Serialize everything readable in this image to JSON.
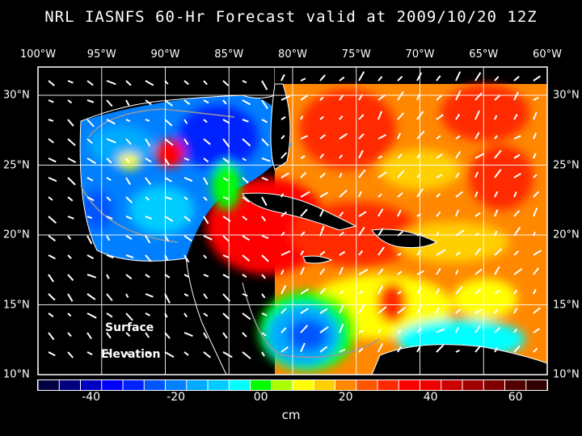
{
  "title": "NRL IASNFS  60-Hr Forecast valid at 2009/10/20 12Z",
  "map": {
    "lon_labels": [
      "100°W",
      "95°W",
      "90°W",
      "85°W",
      "80°W",
      "75°W",
      "70°W",
      "65°W",
      "60°W"
    ],
    "lat_labels": [
      "30°N",
      "25°N",
      "20°N",
      "15°N",
      "10°N"
    ],
    "annotation_line1": "Surface",
    "annotation_line2": "Elevation",
    "variable": "Sea surface elevation with surface currents vectors"
  },
  "colorbar": {
    "unit": "cm",
    "min": -50,
    "max": 70,
    "step": 5,
    "tick_labels": [
      "-40",
      "-20",
      "00",
      "20",
      "40",
      "60"
    ],
    "colors": [
      "#000040",
      "#00007f",
      "#0000c0",
      "#0000ff",
      "#0022ff",
      "#0055ff",
      "#0080ff",
      "#00aaff",
      "#00ccff",
      "#00ffff",
      "#00ff00",
      "#aaff00",
      "#ffff00",
      "#ffd000",
      "#ff8800",
      "#ff5500",
      "#ff2a00",
      "#ff0000",
      "#f00000",
      "#cc0000",
      "#a00000",
      "#800000",
      "#500000",
      "#300000"
    ]
  }
}
